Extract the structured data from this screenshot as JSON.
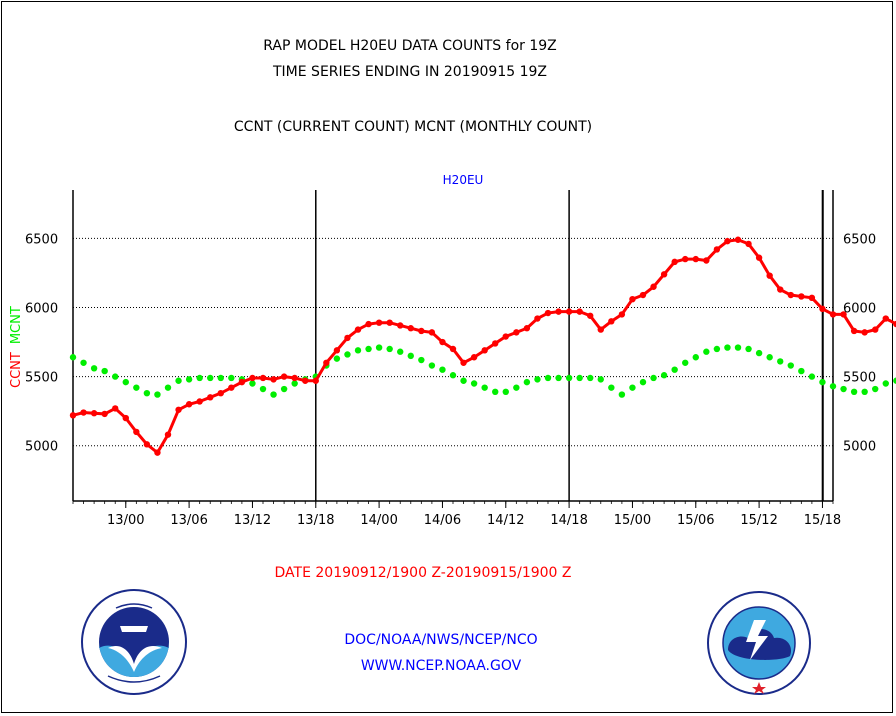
{
  "header": {
    "title_line1": "RAP MODEL H20EU DATA COUNTS for 19Z",
    "title_line2": "TIME SERIES ENDING IN 20190915 19Z",
    "subtitle": "CCNT (CURRENT COUNT) MCNT (MONTHLY COUNT)"
  },
  "footer": {
    "date_range": "DATE 20190912/1900 Z-20190915/1900 Z",
    "org": "DOC/NOAA/NWS/NCEP/NCO",
    "url": "WWW.NCEP.NOAA.GOV"
  },
  "logos": {
    "left": "noaa-logo",
    "right": "nws-logo"
  },
  "colors": {
    "ccnt": "#ff0000",
    "mcnt": "#00ee00",
    "plot_label": "#0000ff"
  },
  "chart_data": {
    "type": "line",
    "title": "H20EU",
    "ylabel_parts": [
      "CCNT",
      "MCNT"
    ],
    "ylim": [
      4600,
      6850
    ],
    "yticks": [
      5000,
      5500,
      6000,
      6500
    ],
    "ytick_labels": [
      "5000",
      "5500",
      "6000",
      "6500"
    ],
    "xlim": [
      "2019-09-12 19:00",
      "2019-09-15 19:00"
    ],
    "xticks": [
      "13/00",
      "13/06",
      "13/12",
      "13/18",
      "14/00",
      "14/06",
      "14/12",
      "14/18",
      "15/00",
      "15/06",
      "15/12",
      "15/18"
    ],
    "vertical_lines": [
      "13/18",
      "14/18",
      "15/18"
    ],
    "grid": "horizontal dotted",
    "x_start": "12/19",
    "x_interval_hours": 1,
    "series": [
      {
        "name": "CCNT",
        "color": "#ff0000",
        "values": [
          5220,
          5240,
          5235,
          5230,
          5270,
          5200,
          5100,
          5010,
          4950,
          5080,
          5260,
          5300,
          5320,
          5350,
          5380,
          5420,
          5460,
          5490,
          5490,
          5480,
          5500,
          5490,
          5470,
          5470,
          5600,
          5690,
          5780,
          5840,
          5880,
          5890,
          5890,
          5870,
          5850,
          5830,
          5820,
          5750,
          5700,
          5600,
          5640,
          5690,
          5740,
          5790,
          5820,
          5850,
          5920,
          5960,
          5970,
          5970,
          5970,
          5940,
          5840,
          5900,
          5950,
          6060,
          6090,
          6150,
          6240,
          6330,
          6350,
          6350,
          6340,
          6420,
          6480,
          6490,
          6460,
          6360,
          6230,
          6130,
          6090,
          6080,
          6070,
          5990,
          5950,
          5950,
          5830,
          5820,
          5840,
          5920,
          5880,
          5830,
          5820,
          5820,
          5840,
          5880,
          5880,
          5800,
          5770,
          5700,
          5700,
          5680,
          5650,
          5650,
          5720,
          5780,
          5860,
          5840,
          5820,
          5800,
          5860,
          5890,
          5900,
          5890,
          5850
        ]
      },
      {
        "name": "MCNT",
        "color": "#00ee00",
        "values": [
          5640,
          5600,
          5560,
          5540,
          5500,
          5460,
          5420,
          5380,
          5370,
          5420,
          5470,
          5480,
          5490,
          5490,
          5490,
          5490,
          5480,
          5450,
          5410,
          5370,
          5410,
          5450,
          5480,
          5500,
          5580,
          5630,
          5660,
          5690,
          5700,
          5710,
          5700,
          5680,
          5650,
          5620,
          5580,
          5550,
          5510,
          5470,
          5450,
          5420,
          5390,
          5390,
          5420,
          5460,
          5480,
          5490,
          5490,
          5490,
          5490,
          5490,
          5480,
          5420,
          5370,
          5420,
          5460,
          5490,
          5510,
          5550,
          5600,
          5640,
          5680,
          5700,
          5710,
          5710,
          5700,
          5670,
          5640,
          5610,
          5580,
          5540,
          5500,
          5460,
          5430,
          5410,
          5390,
          5390,
          5410,
          5450,
          5470,
          5480,
          5490,
          5500,
          5500,
          5490,
          5480,
          5450,
          5420,
          5420,
          5450,
          5480,
          5500,
          5520,
          5540,
          5570,
          5610,
          5660,
          5700,
          5720,
          5720,
          5710,
          5680,
          5660,
          5640
        ]
      }
    ],
    "legend": "none"
  }
}
